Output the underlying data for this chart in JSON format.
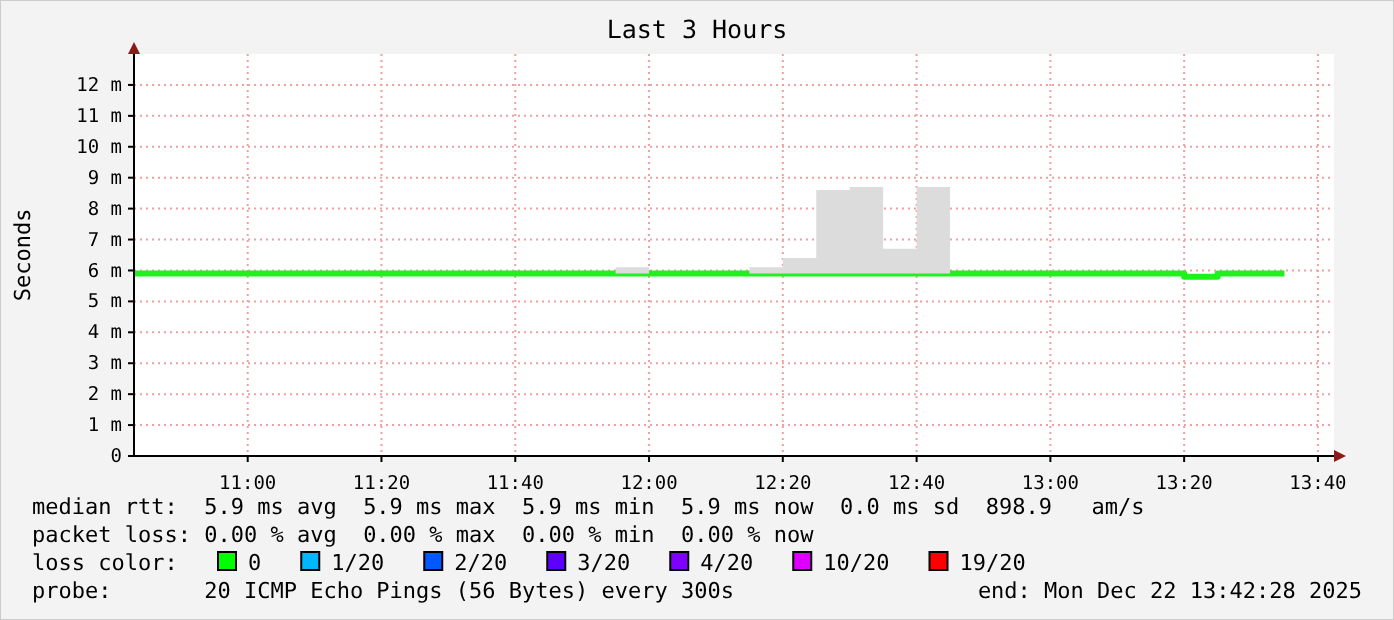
{
  "chart_data": {
    "type": "step",
    "title": "Last 3 Hours",
    "ylabel": "Seconds",
    "x": [
      10.7167,
      11.9167,
      12,
      12.25,
      12.3333,
      12.4167,
      12.5,
      12.5833,
      12.6667,
      12.75,
      13.3333,
      13.4167,
      13.5833
    ],
    "series": [
      {
        "color": "#20f020",
        "values": [
          5.9,
          5.9,
          5.9,
          5.9,
          5.9,
          5.9,
          5.9,
          5.9,
          5.9,
          5.9,
          5.8,
          5.9,
          5.9
        ],
        "lower": [
          5.9,
          5.9,
          5.9,
          5.9,
          5.9,
          5.9,
          5.9,
          5.9,
          5.9,
          5.9,
          5.8,
          5.9,
          5.9
        ],
        "upper": [
          5.9,
          6.1,
          5.9,
          6.1,
          6.4,
          8.6,
          8.7,
          6.7,
          8.7,
          5.9,
          5.8,
          5.9,
          5.9
        ]
      }
    ],
    "xlim": [
      10.7167,
      13.7067
    ],
    "xticks": [
      {
        "value": 11,
        "label": "11:00"
      },
      {
        "value": 11.3333,
        "label": "11:20"
      },
      {
        "value": 11.6667,
        "label": "11:40"
      },
      {
        "value": 12,
        "label": "12:00"
      },
      {
        "value": 12.3333,
        "label": "12:20"
      },
      {
        "value": 12.6667,
        "label": "12:40"
      },
      {
        "value": 13,
        "label": "13:00"
      },
      {
        "value": 13.3333,
        "label": "13:20"
      },
      {
        "value": 13.6667,
        "label": "13:40"
      }
    ],
    "ylim": [
      0,
      13
    ],
    "yticks": [
      0,
      {
        "value": 1,
        "label": "1 m"
      },
      {
        "value": 2,
        "label": "2 m"
      },
      {
        "value": 3,
        "label": "3 m"
      },
      {
        "value": 4,
        "label": "4 m"
      },
      {
        "value": 5,
        "label": "5 m"
      },
      {
        "value": 6,
        "label": "6 m"
      },
      {
        "value": 7,
        "label": "7 m"
      },
      {
        "value": 8,
        "label": "8 m"
      },
      {
        "value": 9,
        "label": "9 m"
      },
      {
        "value": 10,
        "label": "10 m"
      },
      {
        "value": 11,
        "label": "11 m"
      },
      {
        "value": 12,
        "label": "12 m"
      }
    ],
    "grid": true,
    "annotations": [
      "median rtt:  5.9 ms avg  5.9 ms max  5.9 ms min  5.9 ms now  0.0 ms sd  898.9   am/s",
      "packet loss: 0.00 % avg  0.00 % max  0.00 % min  0.00 % now",
      "loss color:",
      "0",
      "1/20",
      "2/20",
      "3/20",
      "4/20",
      "10/20",
      "19/20",
      "probe:       20 ICMP Echo Pings (56 Bytes) every 300s",
      "end: Mon Dec 22 13:42:28 2025"
    ]
  }
}
